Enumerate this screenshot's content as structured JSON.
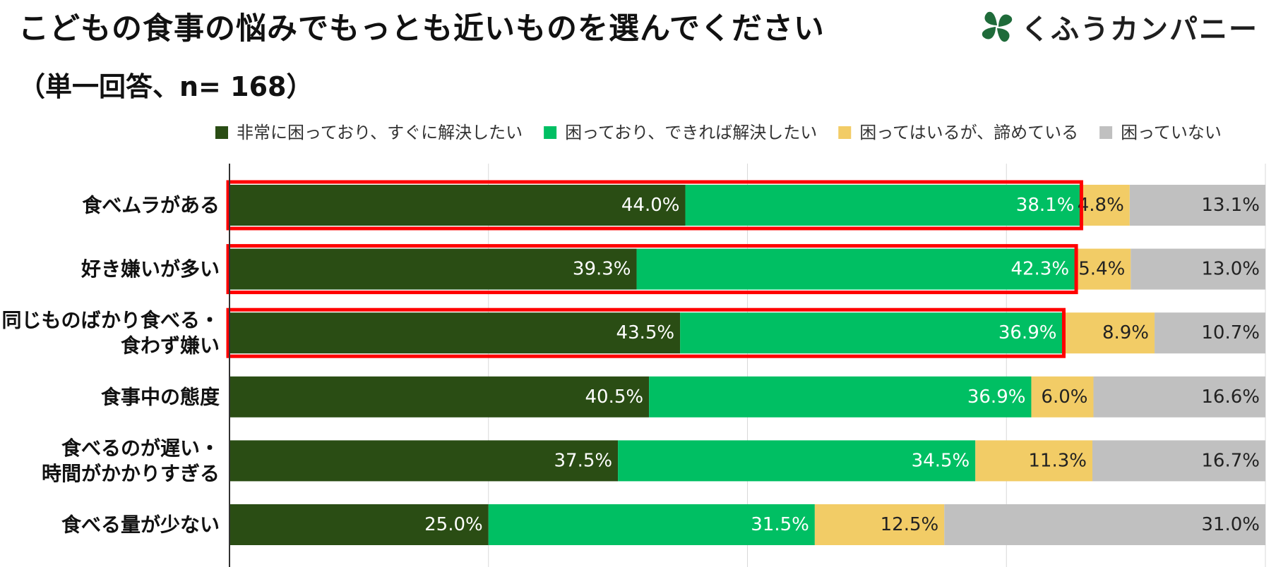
{
  "header": {
    "title": "こどもの食事の悩みでもっとも近いものを選んでください",
    "subtitle": "（単一回答、n= 168）"
  },
  "brand": {
    "name": "くふうカンパニー",
    "logo_icon": "clover-leaf-icon",
    "color": "#1f6b3a"
  },
  "chart_data": {
    "type": "bar",
    "orientation": "horizontal",
    "stacked": true,
    "percent_scale": true,
    "xlim": [
      0,
      100
    ],
    "grid": true,
    "legend_position": "top",
    "categories": [
      [
        "食べムラがある"
      ],
      [
        "好き嫌いが多い"
      ],
      [
        "同じものばかり食べる・",
        "食わず嫌い"
      ],
      [
        "食事中の態度"
      ],
      [
        "食べるのが遅い・",
        "時間がかかりすぎる"
      ],
      [
        "食べる量が少ない"
      ]
    ],
    "series": [
      {
        "name": "非常に困っており、すぐに解決したい",
        "color": "#2a4d14",
        "values": [
          44.0,
          39.3,
          43.5,
          40.5,
          37.5,
          25.0
        ],
        "labels": [
          "44.0%",
          "39.3%",
          "43.5%",
          "40.5%",
          "37.5%",
          "25.0%"
        ]
      },
      {
        "name": "困っており、できれば解決したい",
        "color": "#00bf63",
        "values": [
          38.1,
          42.3,
          36.9,
          36.9,
          34.5,
          31.5
        ],
        "labels": [
          "38.1%",
          "42.3%",
          "36.9%",
          "36.9%",
          "34.5%",
          "31.5%"
        ]
      },
      {
        "name": "困ってはいるが、諦めている",
        "color": "#f2cc66",
        "values": [
          4.8,
          5.4,
          8.9,
          6.0,
          11.3,
          12.5
        ],
        "labels": [
          "4.8%",
          "5.4%",
          "8.9%",
          "6.0%",
          "11.3%",
          "12.5%"
        ]
      },
      {
        "name": "困っていない",
        "color": "#c0c0c0",
        "values": [
          13.1,
          13.0,
          10.7,
          16.6,
          16.7,
          31.0
        ],
        "labels": [
          "13.1%",
          "13.0%",
          "10.7%",
          "16.6%",
          "16.7%",
          "31.0%"
        ]
      }
    ],
    "highlight_rows": [
      0,
      1,
      2
    ],
    "highlight_color": "#ff0000"
  }
}
